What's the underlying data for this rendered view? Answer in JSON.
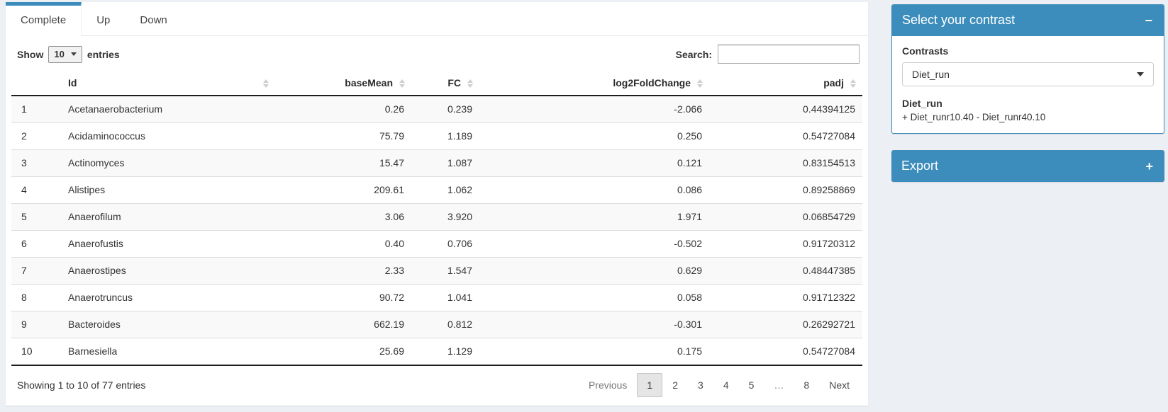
{
  "colors": {
    "primary": "#3c8dbc",
    "page_bg": "#ecf0f5",
    "stripe": "#f9f9f9"
  },
  "tabs": [
    {
      "label": "Complete",
      "active": true
    },
    {
      "label": "Up",
      "active": false
    },
    {
      "label": "Down",
      "active": false
    }
  ],
  "controls": {
    "show_label": "Show",
    "page_length": "10",
    "entries_label": "entries",
    "search_label": "Search:",
    "search_value": ""
  },
  "table": {
    "columns": [
      {
        "label": "",
        "sortable": false,
        "align": "left",
        "width": "6%",
        "key": "row-number"
      },
      {
        "label": "Id",
        "sortable": true,
        "align": "left",
        "width": "25%",
        "key": "id"
      },
      {
        "label": "baseMean",
        "sortable": true,
        "align": "right",
        "width": "16%",
        "key": "basemean"
      },
      {
        "label": "FC",
        "sortable": true,
        "align": "right",
        "width": "8%",
        "key": "fc"
      },
      {
        "label": "log2FoldChange",
        "sortable": true,
        "align": "right",
        "width": "27%",
        "key": "log2foldchange"
      },
      {
        "label": "padj",
        "sortable": true,
        "align": "right",
        "width": "18%",
        "key": "padj"
      }
    ],
    "rows": [
      [
        "1",
        "Acetanaerobacterium",
        "0.26",
        "0.239",
        "-2.066",
        "0.44394125"
      ],
      [
        "2",
        "Acidaminococcus",
        "75.79",
        "1.189",
        "0.250",
        "0.54727084"
      ],
      [
        "3",
        "Actinomyces",
        "15.47",
        "1.087",
        "0.121",
        "0.83154513"
      ],
      [
        "4",
        "Alistipes",
        "209.61",
        "1.062",
        "0.086",
        "0.89258869"
      ],
      [
        "5",
        "Anaerofilum",
        "3.06",
        "3.920",
        "1.971",
        "0.06854729"
      ],
      [
        "6",
        "Anaerofustis",
        "0.40",
        "0.706",
        "-0.502",
        "0.91720312"
      ],
      [
        "7",
        "Anaerostipes",
        "2.33",
        "1.547",
        "0.629",
        "0.48447385"
      ],
      [
        "8",
        "Anaerotruncus",
        "90.72",
        "1.041",
        "0.058",
        "0.91712322"
      ],
      [
        "9",
        "Bacteroides",
        "662.19",
        "0.812",
        "-0.301",
        "0.26292721"
      ],
      [
        "10",
        "Barnesiella",
        "25.69",
        "1.129",
        "0.175",
        "0.54727084"
      ]
    ]
  },
  "footer": {
    "info": "Showing 1 to 10 of 77 entries",
    "pagination": {
      "previous": "Previous",
      "pages": [
        "1",
        "2",
        "3",
        "4",
        "5",
        "…",
        "8"
      ],
      "active_page": "1",
      "disabled_pages": [
        "…"
      ],
      "next": "Next"
    }
  },
  "contrast_box": {
    "title": "Select your contrast",
    "collapse_icon": "−",
    "contrasts_label": "Contrasts",
    "selected_contrast": "Diet_run",
    "contrast_name": "Diet_run",
    "contrast_description": "+ Diet_runr10.40 - Diet_runr40.10"
  },
  "export_box": {
    "title": "Export",
    "expand_icon": "+"
  }
}
